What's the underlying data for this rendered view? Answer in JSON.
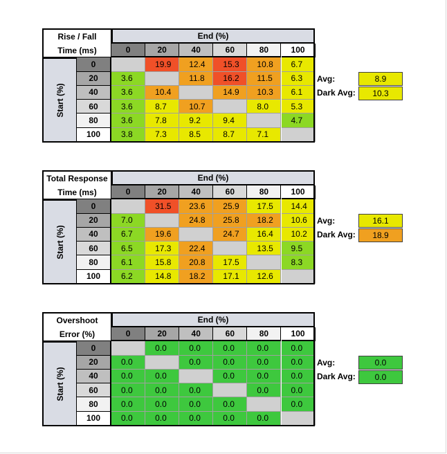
{
  "column_headers": [
    "0",
    "20",
    "40",
    "60",
    "80",
    "100"
  ],
  "row_headers": [
    "0",
    "20",
    "40",
    "60",
    "80",
    "100"
  ],
  "end_label": "End (%)",
  "start_label": "Start (%)",
  "avg_label": "Avg:",
  "dark_avg_label": "Dark Avg:",
  "colors": {
    "header_gray_0": "#808080",
    "header_gray_20": "#a6a6a6",
    "header_gray_40": "#bfbfbf",
    "header_gray_60": "#d9d9d9",
    "header_gray_80": "#f2f2f2",
    "header_gray_100": "#ffffff",
    "diagonal": "#d0d0d0",
    "green": "#3ec83e",
    "red": "#f05028",
    "orange": "#f0a020",
    "yellow": "#e8e800",
    "light_green": "#8cd824"
  },
  "chart_data": [
    {
      "type": "table",
      "title_lines": [
        "Rise / Fall",
        "Time (ms)"
      ],
      "x_label": "End (%)",
      "y_label": "Start (%)",
      "columns": [
        "0",
        "20",
        "40",
        "60",
        "80",
        "100"
      ],
      "rows": [
        "0",
        "20",
        "40",
        "60",
        "80",
        "100"
      ],
      "values": [
        [
          null,
          "19.9",
          "12.4",
          "15.3",
          "10.8",
          "6.7"
        ],
        [
          "3.6",
          null,
          "11.8",
          "16.2",
          "11.5",
          "6.3"
        ],
        [
          "3.6",
          "10.4",
          null,
          "14.9",
          "10.3",
          "6.1"
        ],
        [
          "3.6",
          "8.7",
          "10.7",
          null,
          "8.0",
          "5.3"
        ],
        [
          "3.6",
          "7.8",
          "9.2",
          "9.4",
          null,
          "4.7"
        ],
        [
          "3.8",
          "7.3",
          "8.5",
          "8.7",
          "7.1",
          null
        ]
      ],
      "avg": "8.9",
      "dark_avg": "10.3",
      "avg_color": "#e8e800",
      "dark_avg_color": "#e8e800"
    },
    {
      "type": "table",
      "title_lines": [
        "Total Response",
        "Time (ms)"
      ],
      "x_label": "End (%)",
      "y_label": "Start (%)",
      "columns": [
        "0",
        "20",
        "40",
        "60",
        "80",
        "100"
      ],
      "rows": [
        "0",
        "20",
        "40",
        "60",
        "80",
        "100"
      ],
      "values": [
        [
          null,
          "31.5",
          "23.6",
          "25.9",
          "17.5",
          "14.4"
        ],
        [
          "7.0",
          null,
          "24.8",
          "25.8",
          "18.2",
          "10.6"
        ],
        [
          "6.7",
          "19.6",
          null,
          "24.7",
          "16.4",
          "10.2"
        ],
        [
          "6.5",
          "17.3",
          "22.4",
          null,
          "13.5",
          "9.5"
        ],
        [
          "6.1",
          "15.8",
          "20.8",
          "17.5",
          null,
          "8.3"
        ],
        [
          "6.2",
          "14.8",
          "18.2",
          "17.1",
          "12.6",
          null
        ]
      ],
      "avg": "16.1",
      "dark_avg": "18.9",
      "avg_color": "#e8e800",
      "dark_avg_color": "#f0a020"
    },
    {
      "type": "table",
      "title_lines": [
        "Overshoot",
        "Error (%)"
      ],
      "x_label": "End (%)",
      "y_label": "Start (%)",
      "columns": [
        "0",
        "20",
        "40",
        "60",
        "80",
        "100"
      ],
      "rows": [
        "0",
        "20",
        "40",
        "60",
        "80",
        "100"
      ],
      "values": [
        [
          null,
          "0.0",
          "0.0",
          "0.0",
          "0.0",
          "0.0"
        ],
        [
          "0.0",
          null,
          "0.0",
          "0.0",
          "0.0",
          "0.0"
        ],
        [
          "0.0",
          "0.0",
          null,
          "0.0",
          "0.0",
          "0.0"
        ],
        [
          "0.0",
          "0.0",
          "0.0",
          null,
          "0.0",
          "0.0"
        ],
        [
          "0.0",
          "0.0",
          "0.0",
          "0.0",
          null,
          "0.0"
        ],
        [
          "0.0",
          "0.0",
          "0.0",
          "0.0",
          "0.0",
          null
        ]
      ],
      "avg": "0.0",
      "dark_avg": "0.0",
      "avg_color": "#3ec83e",
      "dark_avg_color": "#3ec83e"
    }
  ]
}
